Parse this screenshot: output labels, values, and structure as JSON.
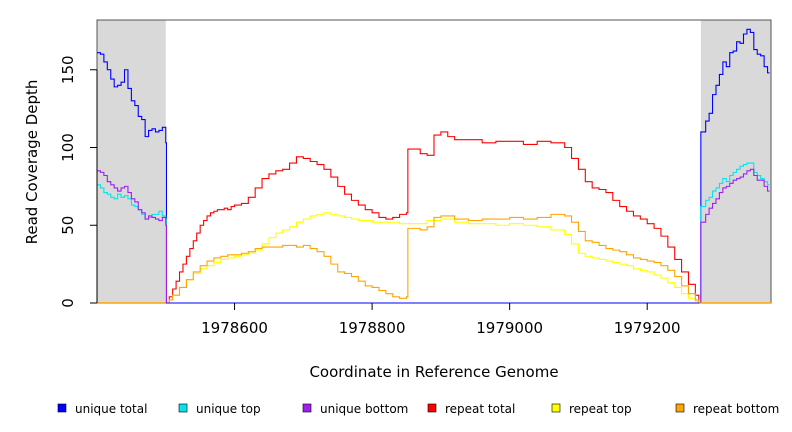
{
  "chart_data": {
    "type": "line",
    "xlabel": "Coordinate in Reference Genome",
    "ylabel": "Read Coverage Depth",
    "xlim": [
      1978400,
      1979380
    ],
    "ylim": [
      0,
      182
    ],
    "x_ticks": [
      1978600,
      1978800,
      1979000,
      1979200
    ],
    "y_ticks": [
      0,
      50,
      100,
      150
    ],
    "shaded_regions": [
      [
        1978400,
        1978500
      ],
      [
        1979278,
        1979380
      ]
    ],
    "shade_color": "#d9d9d9",
    "legend_position": "bottom",
    "series": [
      {
        "name": "unique total",
        "color": "#0000ff",
        "x": [
          1978400,
          1978405,
          1978410,
          1978415,
          1978420,
          1978425,
          1978430,
          1978435,
          1978440,
          1978445,
          1978450,
          1978455,
          1978460,
          1978465,
          1978470,
          1978475,
          1978480,
          1978485,
          1978490,
          1978495,
          1978500,
          1978501,
          1979275,
          1979276,
          1979278,
          1979285,
          1979290,
          1979295,
          1979300,
          1979305,
          1979310,
          1979315,
          1979320,
          1979325,
          1979330,
          1979335,
          1979340,
          1979345,
          1979350,
          1979355,
          1979360,
          1979365,
          1979370,
          1979375,
          1979378
        ],
        "y": [
          161,
          160,
          155,
          150,
          144,
          139,
          140,
          142,
          150,
          138,
          130,
          127,
          120,
          118,
          107,
          111,
          112,
          110,
          111,
          113,
          103,
          0,
          0,
          0,
          110,
          117,
          122,
          134,
          140,
          147,
          155,
          152,
          161,
          162,
          168,
          167,
          173,
          176,
          174,
          163,
          160,
          159,
          152,
          148,
          148
        ]
      },
      {
        "name": "unique top",
        "color": "#00e5ee",
        "x": [
          1978400,
          1978405,
          1978410,
          1978415,
          1978420,
          1978425,
          1978430,
          1978435,
          1978440,
          1978445,
          1978450,
          1978455,
          1978460,
          1978465,
          1978470,
          1978475,
          1978480,
          1978485,
          1978490,
          1978495,
          1978500,
          1978501,
          1979275,
          1979276,
          1979278,
          1979285,
          1979290,
          1979295,
          1979300,
          1979305,
          1979310,
          1979315,
          1979320,
          1979325,
          1979330,
          1979335,
          1979340,
          1979345,
          1979350,
          1979355,
          1979360,
          1979365,
          1979370,
          1979375,
          1979378
        ],
        "y": [
          76,
          74,
          71,
          70,
          68,
          67,
          70,
          68,
          69,
          67,
          63,
          62,
          60,
          57,
          54,
          55,
          57,
          57,
          59,
          56,
          54,
          0,
          0,
          0,
          62,
          66,
          68,
          72,
          74,
          77,
          80,
          78,
          82,
          84,
          86,
          88,
          89,
          90,
          90,
          84,
          82,
          80,
          78,
          76,
          76
        ]
      },
      {
        "name": "unique bottom",
        "color": "#a020f0",
        "x": [
          1978400,
          1978405,
          1978410,
          1978415,
          1978420,
          1978425,
          1978430,
          1978435,
          1978440,
          1978445,
          1978450,
          1978455,
          1978460,
          1978465,
          1978470,
          1978475,
          1978480,
          1978485,
          1978490,
          1978495,
          1978500,
          1978501,
          1979275,
          1979276,
          1979278,
          1979285,
          1979290,
          1979295,
          1979300,
          1979305,
          1979310,
          1979315,
          1979320,
          1979325,
          1979330,
          1979335,
          1979340,
          1979345,
          1979350,
          1979355,
          1979360,
          1979365,
          1979370,
          1979375,
          1979378
        ],
        "y": [
          85,
          84,
          82,
          78,
          76,
          74,
          72,
          74,
          75,
          71,
          67,
          65,
          60,
          58,
          54,
          56,
          55,
          54,
          53,
          55,
          50,
          0,
          0,
          0,
          52,
          57,
          61,
          64,
          67,
          71,
          74,
          75,
          77,
          79,
          80,
          81,
          83,
          85,
          86,
          82,
          79,
          79,
          75,
          72,
          72
        ]
      },
      {
        "name": "repeat total",
        "color": "#ff0000",
        "x": [
          1978500,
          1978505,
          1978510,
          1978515,
          1978520,
          1978525,
          1978530,
          1978535,
          1978540,
          1978545,
          1978550,
          1978555,
          1978560,
          1978565,
          1978570,
          1978575,
          1978580,
          1978585,
          1978590,
          1978595,
          1978600,
          1978610,
          1978620,
          1978630,
          1978640,
          1978650,
          1978660,
          1978670,
          1978680,
          1978690,
          1978700,
          1978710,
          1978720,
          1978730,
          1978740,
          1978750,
          1978760,
          1978770,
          1978780,
          1978790,
          1978800,
          1978810,
          1978820,
          1978830,
          1978840,
          1978850,
          1978852,
          1978860,
          1978870,
          1978880,
          1978890,
          1978900,
          1978910,
          1978920,
          1978940,
          1978960,
          1978980,
          1979000,
          1979020,
          1979040,
          1979060,
          1979080,
          1979090,
          1979100,
          1979110,
          1979120,
          1979130,
          1979140,
          1979150,
          1979160,
          1979170,
          1979180,
          1979190,
          1979200,
          1979210,
          1979220,
          1979230,
          1979240,
          1979250,
          1979260,
          1979270,
          1979275
        ],
        "y": [
          0,
          4,
          9,
          14,
          20,
          25,
          30,
          35,
          40,
          45,
          50,
          53,
          56,
          58,
          59,
          60,
          60,
          61,
          60,
          62,
          63,
          64,
          68,
          74,
          80,
          83,
          85,
          86,
          90,
          94,
          93,
          91,
          89,
          86,
          81,
          75,
          70,
          66,
          63,
          60,
          58,
          55,
          54,
          55,
          57,
          58,
          99,
          99,
          96,
          95,
          108,
          110,
          107,
          105,
          105,
          103,
          104,
          104,
          102,
          104,
          103,
          100,
          93,
          86,
          78,
          74,
          73,
          71,
          66,
          62,
          59,
          56,
          54,
          51,
          48,
          43,
          36,
          28,
          20,
          12,
          5,
          0
        ]
      },
      {
        "name": "repeat top",
        "color": "#ffff00",
        "x": [
          1978500,
          1978505,
          1978510,
          1978520,
          1978530,
          1978540,
          1978550,
          1978560,
          1978570,
          1978580,
          1978590,
          1978600,
          1978610,
          1978620,
          1978630,
          1978640,
          1978650,
          1978660,
          1978670,
          1978680,
          1978690,
          1978700,
          1978710,
          1978720,
          1978730,
          1978740,
          1978750,
          1978760,
          1978770,
          1978780,
          1978790,
          1978800,
          1978820,
          1978840,
          1978852,
          1978860,
          1978870,
          1978880,
          1978890,
          1978900,
          1978920,
          1978940,
          1978960,
          1978980,
          1979000,
          1979020,
          1979040,
          1979060,
          1979080,
          1979090,
          1979100,
          1979110,
          1979120,
          1979130,
          1979140,
          1979150,
          1979160,
          1979170,
          1979180,
          1979190,
          1979200,
          1979210,
          1979220,
          1979230,
          1979240,
          1979250,
          1979260,
          1979270,
          1979275
        ],
        "y": [
          0,
          2,
          5,
          10,
          15,
          19,
          22,
          24,
          26,
          28,
          29,
          30,
          31,
          32,
          34,
          38,
          42,
          45,
          47,
          49,
          52,
          54,
          56,
          57,
          58,
          57,
          56,
          55,
          54,
          53,
          53,
          52,
          52,
          51,
          51,
          51,
          51,
          53,
          53,
          54,
          52,
          51,
          51,
          50,
          51,
          50,
          49,
          47,
          44,
          38,
          32,
          30,
          29,
          28,
          27,
          26,
          25,
          24,
          22,
          21,
          20,
          18,
          16,
          13,
          10,
          6,
          3,
          1,
          0
        ]
      },
      {
        "name": "repeat bottom",
        "color": "#ffa500",
        "x": [
          1978500,
          1978505,
          1978510,
          1978520,
          1978530,
          1978540,
          1978550,
          1978560,
          1978570,
          1978580,
          1978590,
          1978600,
          1978610,
          1978620,
          1978630,
          1978640,
          1978650,
          1978660,
          1978670,
          1978680,
          1978690,
          1978700,
          1978710,
          1978720,
          1978730,
          1978740,
          1978750,
          1978760,
          1978770,
          1978780,
          1978790,
          1978800,
          1978810,
          1978820,
          1978830,
          1978840,
          1978850,
          1978852,
          1978860,
          1978870,
          1978880,
          1978890,
          1978900,
          1978920,
          1978940,
          1978960,
          1978980,
          1979000,
          1979020,
          1979040,
          1979060,
          1979080,
          1979090,
          1979100,
          1979110,
          1979120,
          1979130,
          1979140,
          1979150,
          1979160,
          1979170,
          1979180,
          1979190,
          1979200,
          1979210,
          1979220,
          1979230,
          1979240,
          1979250,
          1979260,
          1979270,
          1979275
        ],
        "y": [
          0,
          2,
          5,
          10,
          15,
          20,
          24,
          27,
          29,
          30,
          31,
          31,
          32,
          33,
          35,
          36,
          36,
          36,
          37,
          37,
          36,
          37,
          35,
          33,
          30,
          25,
          20,
          19,
          17,
          14,
          11,
          10,
          8,
          6,
          4,
          3,
          4,
          48,
          48,
          47,
          49,
          55,
          56,
          54,
          53,
          54,
          54,
          55,
          54,
          55,
          57,
          56,
          52,
          46,
          40,
          39,
          37,
          35,
          34,
          33,
          31,
          29,
          28,
          27,
          26,
          24,
          21,
          17,
          11,
          6,
          2,
          0
        ]
      }
    ]
  }
}
